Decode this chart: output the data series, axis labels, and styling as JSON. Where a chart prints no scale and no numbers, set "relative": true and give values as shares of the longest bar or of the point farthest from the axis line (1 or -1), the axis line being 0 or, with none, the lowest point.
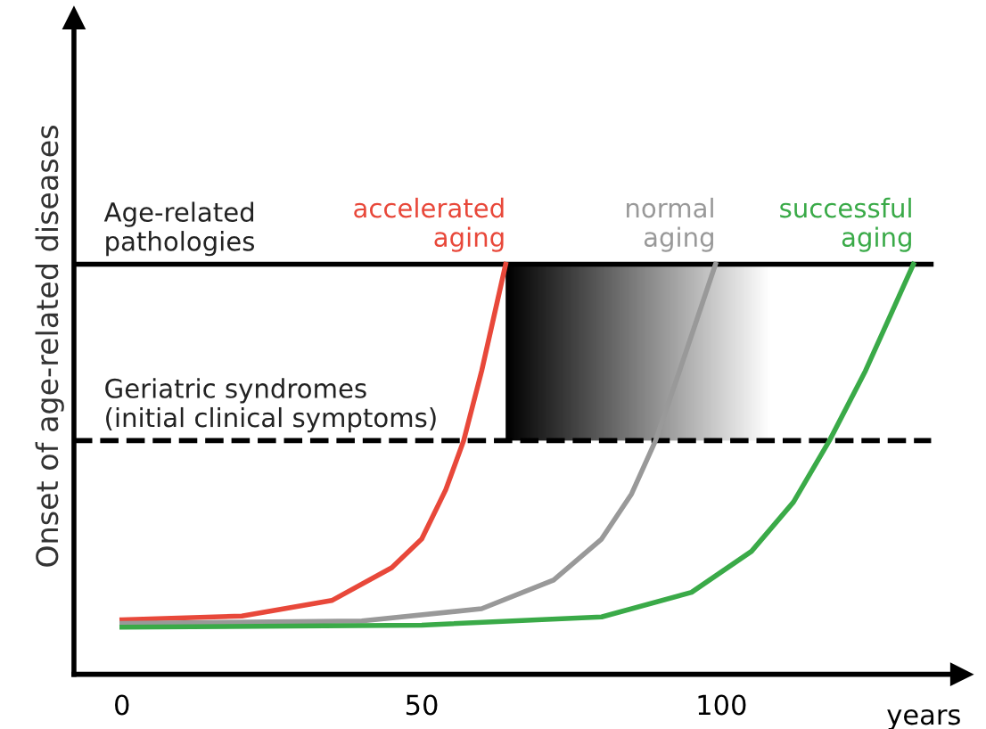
{
  "chart_data": {
    "type": "line",
    "relative": true,
    "ylabel": "Onset of age-related diseases",
    "xlabel": "years",
    "xlim": [
      -8,
      140
    ],
    "xticks": [
      0,
      50,
      100
    ],
    "grid": false,
    "legend": false,
    "marker": "none",
    "line_style": "solid",
    "series": [
      {
        "name": "accelerated aging",
        "color": "#e8483a",
        "x": [
          0,
          20,
          35,
          45,
          50,
          54,
          57,
          60,
          62,
          64
        ],
        "values": [
          0.133,
          0.142,
          0.18,
          0.26,
          0.33,
          0.45,
          0.57,
          0.74,
          0.87,
          1
        ]
      },
      {
        "name": "normal aging",
        "color": "#999999",
        "x": [
          0,
          40,
          60,
          72,
          80,
          85,
          89,
          93,
          96,
          99
        ],
        "values": [
          0.124,
          0.13,
          0.16,
          0.23,
          0.33,
          0.44,
          0.57,
          0.74,
          0.87,
          1
        ]
      },
      {
        "name": "successful aging",
        "color": "#3aaa48",
        "x": [
          0,
          50,
          80,
          95,
          105,
          112,
          118,
          124,
          128,
          132
        ],
        "values": [
          0.115,
          0.12,
          0.14,
          0.2,
          0.3,
          0.42,
          0.57,
          0.74,
          0.87,
          1
        ]
      }
    ],
    "ref_lines": [
      {
        "axis": "y",
        "value": 1,
        "label": "Age-related pathologies",
        "color": "#000000",
        "line_style": "solid"
      },
      {
        "axis": "y",
        "value": 0.57,
        "label": "Geriatric syndromes (initial clinical symptoms)",
        "color": "#000000",
        "line_style": "dashed"
      }
    ]
  }
}
